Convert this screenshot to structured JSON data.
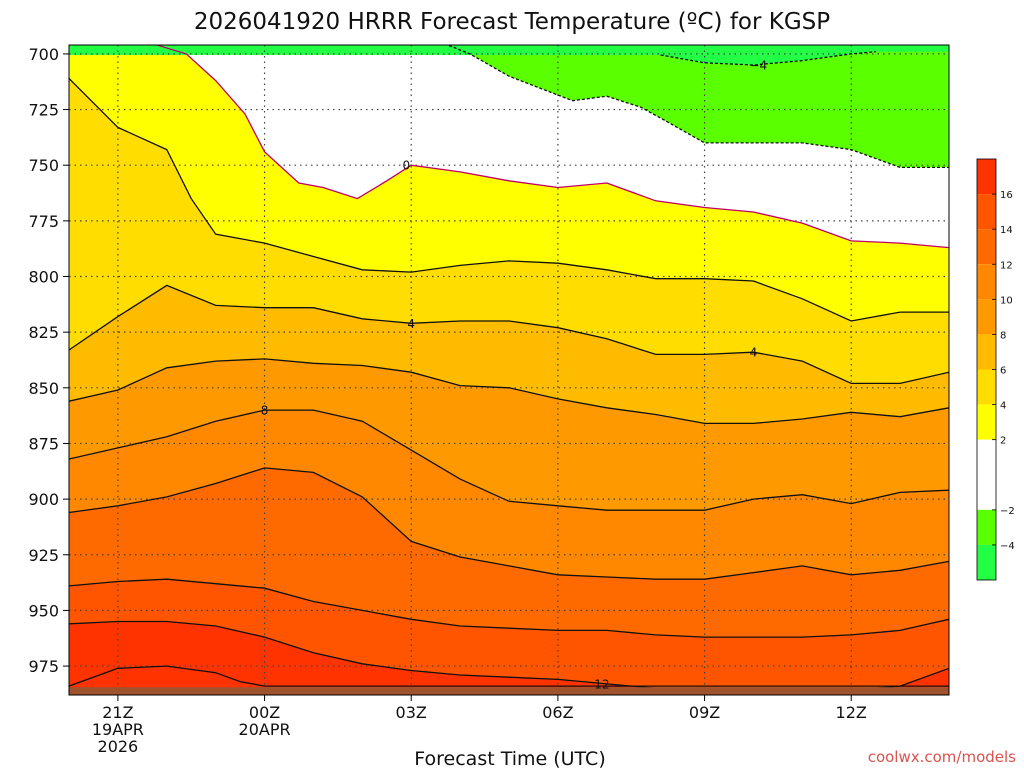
{
  "chart_data": {
    "type": "contour",
    "title": "2026041920 HRRR Forecast Temperature (ºC) for KGSP",
    "xlabel": "Forecast Time (UTC)",
    "credit": "coolwx.com/models",
    "y_ticks": [
      {
        "p": 700,
        "label": "700"
      },
      {
        "p": 725,
        "label": "725"
      },
      {
        "p": 750,
        "label": "750"
      },
      {
        "p": 775,
        "label": "775"
      },
      {
        "p": 800,
        "label": "800"
      },
      {
        "p": 825,
        "label": "825"
      },
      {
        "p": 850,
        "label": "850"
      },
      {
        "p": 875,
        "label": "875"
      },
      {
        "p": 900,
        "label": "900"
      },
      {
        "p": 925,
        "label": "925"
      },
      {
        "p": 950,
        "label": "950"
      },
      {
        "p": 975,
        "label": "975"
      }
    ],
    "x_ticks": [
      {
        "t": 1,
        "lines": [
          "21Z",
          "19APR",
          "2026"
        ]
      },
      {
        "t": 4,
        "lines": [
          "00Z",
          "20APR"
        ]
      },
      {
        "t": 7,
        "lines": [
          "03Z"
        ]
      },
      {
        "t": 10,
        "lines": [
          "06Z"
        ]
      },
      {
        "t": 13,
        "lines": [
          "09Z"
        ]
      },
      {
        "t": 16,
        "lines": [
          "12Z"
        ]
      }
    ],
    "x_range_hours_since_20Z": [
      0,
      18
    ],
    "y_range_hPa": [
      696,
      988
    ],
    "grid": "dotted",
    "colorbar": {
      "ticks": [
        "16",
        "14",
        "12",
        "10",
        "8",
        "6",
        "4",
        "2",
        "−2",
        "−4"
      ],
      "bands": [
        {
          "from": 16,
          "to": 18,
          "color": "#ff3300"
        },
        {
          "from": 14,
          "to": 16,
          "color": "#ff5500"
        },
        {
          "from": 12,
          "to": 14,
          "color": "#ff6a00"
        },
        {
          "from": 10,
          "to": 12,
          "color": "#ff8800"
        },
        {
          "from": 8,
          "to": 10,
          "color": "#ff9900"
        },
        {
          "from": 6,
          "to": 8,
          "color": "#ffbb00"
        },
        {
          "from": 4,
          "to": 6,
          "color": "#ffdd00"
        },
        {
          "from": 2,
          "to": 4,
          "color": "#ffff00"
        },
        {
          "from": -2,
          "to": 2,
          "color": "#ffffff"
        },
        {
          "from": -4,
          "to": -2,
          "color": "#5aff00"
        },
        {
          "from": -6,
          "to": -4,
          "color": "#22ff44"
        }
      ]
    },
    "ground_color": "#a0522d",
    "contours": [
      {
        "level": -4,
        "label": "−4",
        "style": "dashed",
        "color": "#111111",
        "fill_above": "#22ff44",
        "points": [
          [
            12.1,
            700.5
          ],
          [
            13,
            704
          ],
          [
            14,
            705
          ],
          [
            15,
            703
          ],
          [
            16,
            700
          ],
          [
            16.5,
            699
          ]
        ]
      },
      {
        "level": -2,
        "label": "",
        "style": "dashed",
        "color": "#111111",
        "fill_above": "#5aff00",
        "points": [
          [
            7.3,
            692
          ],
          [
            8.2,
            700
          ],
          [
            9,
            710
          ],
          [
            10.3,
            721
          ],
          [
            11,
            719
          ],
          [
            11.7,
            724
          ],
          [
            12.2,
            730
          ],
          [
            13,
            740
          ],
          [
            14,
            740
          ],
          [
            15,
            740
          ],
          [
            16,
            743
          ],
          [
            17,
            751
          ],
          [
            18,
            751
          ]
        ]
      },
      {
        "level": 0,
        "label": "0",
        "style": "solid",
        "color": "#c0006a",
        "fill_above": "#ffffff",
        "points": [
          [
            1.2,
            692
          ],
          [
            2.4,
            700
          ],
          [
            3,
            712
          ],
          [
            3.6,
            727
          ],
          [
            4,
            744
          ],
          [
            4.7,
            758
          ],
          [
            5.2,
            760
          ],
          [
            5.9,
            765
          ],
          [
            6.5,
            757
          ],
          [
            7,
            750
          ],
          [
            8,
            753
          ],
          [
            9,
            757
          ],
          [
            10,
            760
          ],
          [
            11,
            758
          ],
          [
            12,
            766
          ],
          [
            13,
            769
          ],
          [
            14,
            771
          ],
          [
            15,
            776
          ],
          [
            16,
            784
          ],
          [
            17,
            785
          ],
          [
            18,
            787
          ]
        ]
      },
      {
        "level": 2,
        "label": "",
        "style": "solid",
        "color": "#111111",
        "fill_above": "#ffff00",
        "points": [
          [
            0,
            711
          ],
          [
            1,
            733
          ],
          [
            2,
            743
          ],
          [
            2.5,
            765
          ],
          [
            3,
            781
          ],
          [
            4,
            785
          ],
          [
            5,
            791
          ],
          [
            6,
            797
          ],
          [
            7,
            798
          ],
          [
            8,
            795
          ],
          [
            9,
            793
          ],
          [
            10,
            794
          ],
          [
            11,
            797
          ],
          [
            12,
            801
          ],
          [
            13,
            801
          ],
          [
            14,
            802
          ],
          [
            15,
            810
          ],
          [
            16,
            820
          ],
          [
            17,
            816
          ],
          [
            18,
            816
          ]
        ]
      },
      {
        "level": 4,
        "label": "4",
        "style": "solid",
        "color": "#111111",
        "fill_above": "#ffdd00",
        "points": [
          [
            0,
            833
          ],
          [
            1,
            818
          ],
          [
            2,
            804
          ],
          [
            3,
            813
          ],
          [
            4,
            814
          ],
          [
            5,
            814
          ],
          [
            6,
            819
          ],
          [
            7,
            821
          ],
          [
            8,
            820
          ],
          [
            9,
            820
          ],
          [
            10,
            823
          ],
          [
            11,
            828
          ],
          [
            12,
            835
          ],
          [
            13,
            835
          ],
          [
            14,
            834
          ],
          [
            15,
            838
          ],
          [
            16,
            848
          ],
          [
            17,
            848
          ],
          [
            18,
            843
          ]
        ]
      },
      {
        "level": 6,
        "label": "",
        "style": "solid",
        "color": "#111111",
        "fill_above": "#ffbb00",
        "points": [
          [
            0,
            856
          ],
          [
            1,
            851
          ],
          [
            2,
            841
          ],
          [
            3,
            838
          ],
          [
            4,
            837
          ],
          [
            5,
            839
          ],
          [
            6,
            840
          ],
          [
            7,
            843
          ],
          [
            8,
            849
          ],
          [
            9,
            850
          ],
          [
            10,
            855
          ],
          [
            11,
            859
          ],
          [
            12,
            862
          ],
          [
            13,
            866
          ],
          [
            14,
            866
          ],
          [
            15,
            864
          ],
          [
            16,
            861
          ],
          [
            17,
            863
          ],
          [
            18,
            859
          ]
        ]
      },
      {
        "level": 8,
        "label": "8",
        "style": "solid",
        "color": "#111111",
        "fill_above": "#ff9900",
        "points": [
          [
            0,
            882
          ],
          [
            1,
            877
          ],
          [
            2,
            872
          ],
          [
            3,
            865
          ],
          [
            4,
            860
          ],
          [
            5,
            860
          ],
          [
            6,
            865
          ],
          [
            7,
            878
          ],
          [
            8,
            891
          ],
          [
            9,
            901
          ],
          [
            10,
            903
          ],
          [
            11,
            905
          ],
          [
            12,
            905
          ],
          [
            13,
            905
          ],
          [
            14,
            900
          ],
          [
            15,
            898
          ],
          [
            16,
            902
          ],
          [
            17,
            897
          ],
          [
            18,
            896
          ]
        ]
      },
      {
        "level": 10,
        "label": "",
        "style": "solid",
        "color": "#111111",
        "fill_above": "#ff8800",
        "points": [
          [
            0,
            906
          ],
          [
            1,
            903
          ],
          [
            2,
            899
          ],
          [
            3,
            893
          ],
          [
            4,
            886
          ],
          [
            5,
            888
          ],
          [
            6,
            899
          ],
          [
            7,
            919
          ],
          [
            8,
            926
          ],
          [
            9,
            930
          ],
          [
            10,
            934
          ],
          [
            11,
            935
          ],
          [
            12,
            936
          ],
          [
            13,
            936
          ],
          [
            14,
            933
          ],
          [
            15,
            930
          ],
          [
            16,
            934
          ],
          [
            17,
            932
          ],
          [
            18,
            928
          ]
        ]
      },
      {
        "level": 12,
        "label": "12",
        "style": "solid",
        "color": "#111111",
        "fill_above": "#ff6a00",
        "points": [
          [
            0,
            939
          ],
          [
            1,
            937
          ],
          [
            2,
            936
          ],
          [
            3,
            938
          ],
          [
            4,
            940
          ],
          [
            5,
            946
          ],
          [
            6,
            950
          ],
          [
            7,
            954
          ],
          [
            8,
            957
          ],
          [
            9,
            958
          ],
          [
            10,
            959
          ],
          [
            11,
            959
          ],
          [
            12,
            961
          ],
          [
            13,
            962
          ],
          [
            14,
            962
          ],
          [
            15,
            962
          ],
          [
            16,
            961
          ],
          [
            17,
            959
          ],
          [
            18,
            954
          ]
        ]
      },
      {
        "level": 14,
        "label": "",
        "style": "solid",
        "color": "#111111",
        "fill_above": "#ff5500",
        "points": [
          [
            0,
            956
          ],
          [
            1,
            955
          ],
          [
            2,
            955
          ],
          [
            3,
            957
          ],
          [
            4,
            962
          ],
          [
            5,
            969
          ],
          [
            6,
            974
          ],
          [
            7,
            977
          ],
          [
            8,
            979
          ],
          [
            9,
            980
          ],
          [
            10,
            981
          ],
          [
            11,
            983
          ],
          [
            12,
            985
          ],
          [
            13,
            985
          ],
          [
            14,
            985
          ],
          [
            15,
            986
          ],
          [
            16,
            986
          ],
          [
            17,
            984
          ],
          [
            18,
            976
          ]
        ]
      },
      {
        "level": 16,
        "label": "",
        "style": "solid",
        "color": "#111111",
        "fill_above": "#ff3300",
        "points": [
          [
            0,
            984
          ],
          [
            1,
            976
          ],
          [
            2,
            975
          ],
          [
            3,
            978
          ],
          [
            3.5,
            982
          ],
          [
            4,
            984
          ],
          [
            18,
            984
          ]
        ]
      }
    ],
    "contour_labels": [
      {
        "text": "−4",
        "t": 14.1,
        "p": 705
      },
      {
        "text": "0",
        "t": 6.9,
        "p": 750
      },
      {
        "text": "4",
        "t": 7.0,
        "p": 821
      },
      {
        "text": "4",
        "t": 14.0,
        "p": 834
      },
      {
        "text": "8",
        "t": 4.0,
        "p": 860
      },
      {
        "text": "12",
        "t": 10.9,
        "p": 983
      }
    ]
  }
}
